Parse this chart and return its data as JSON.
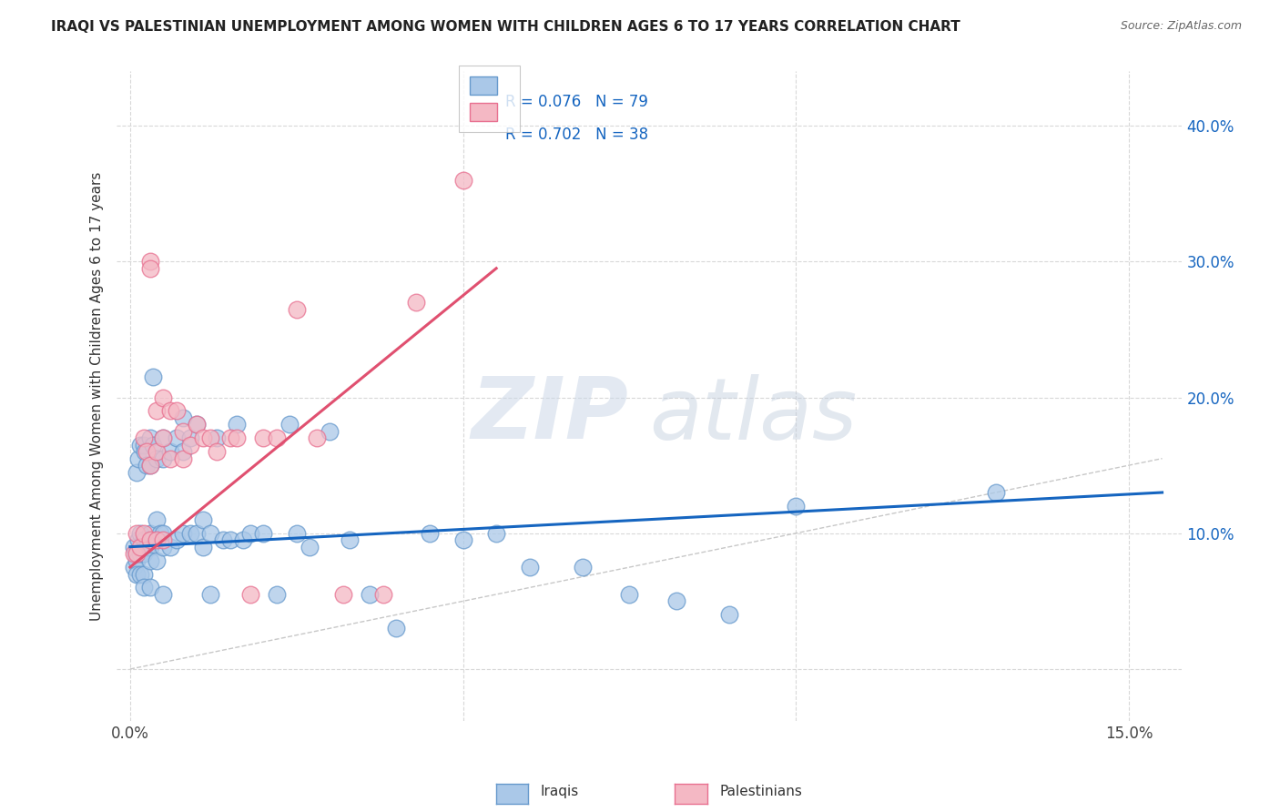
{
  "title": "IRAQI VS PALESTINIAN UNEMPLOYMENT AMONG WOMEN WITH CHILDREN AGES 6 TO 17 YEARS CORRELATION CHART",
  "source": "Source: ZipAtlas.com",
  "ylabel": "Unemployment Among Women with Children Ages 6 to 17 years",
  "ylabel_ticks": [
    0.0,
    0.1,
    0.2,
    0.3,
    0.4
  ],
  "ylabel_labels": [
    "",
    "10.0%",
    "20.0%",
    "30.0%",
    "40.0%"
  ],
  "xlim": [
    -0.002,
    0.158
  ],
  "ylim": [
    -0.038,
    0.44
  ],
  "legend_r_color": "#1565c0",
  "legend_n_color": "#1565c0",
  "watermark_zip": "ZIP",
  "watermark_atlas": "atlas",
  "iraqis_color": "#aac8e8",
  "palestinians_color": "#f4b8c4",
  "iraqis_edge_color": "#6699cc",
  "palestinians_edge_color": "#e87090",
  "iraqis_line_color": "#1565c0",
  "palestinians_line_color": "#e05070",
  "diagonal_color": "#c8c8c8",
  "grid_color": "#d8d8d8",
  "iraqis_x": [
    0.0005,
    0.0005,
    0.0008,
    0.001,
    0.001,
    0.001,
    0.0012,
    0.0012,
    0.0015,
    0.0015,
    0.0015,
    0.0015,
    0.002,
    0.002,
    0.002,
    0.002,
    0.002,
    0.0022,
    0.0022,
    0.0025,
    0.0025,
    0.003,
    0.003,
    0.003,
    0.003,
    0.003,
    0.003,
    0.0035,
    0.0035,
    0.004,
    0.004,
    0.004,
    0.004,
    0.0045,
    0.005,
    0.005,
    0.005,
    0.005,
    0.005,
    0.006,
    0.006,
    0.007,
    0.007,
    0.008,
    0.008,
    0.008,
    0.009,
    0.009,
    0.01,
    0.01,
    0.011,
    0.011,
    0.012,
    0.012,
    0.013,
    0.014,
    0.015,
    0.016,
    0.017,
    0.018,
    0.02,
    0.022,
    0.024,
    0.025,
    0.027,
    0.03,
    0.033,
    0.036,
    0.04,
    0.045,
    0.05,
    0.055,
    0.06,
    0.068,
    0.075,
    0.082,
    0.09,
    0.1,
    0.13
  ],
  "iraqis_y": [
    0.09,
    0.075,
    0.085,
    0.145,
    0.08,
    0.07,
    0.155,
    0.095,
    0.165,
    0.1,
    0.085,
    0.07,
    0.165,
    0.095,
    0.085,
    0.07,
    0.06,
    0.16,
    0.095,
    0.15,
    0.09,
    0.17,
    0.15,
    0.1,
    0.09,
    0.08,
    0.06,
    0.215,
    0.165,
    0.155,
    0.11,
    0.095,
    0.08,
    0.1,
    0.17,
    0.155,
    0.1,
    0.09,
    0.055,
    0.16,
    0.09,
    0.17,
    0.095,
    0.185,
    0.16,
    0.1,
    0.17,
    0.1,
    0.18,
    0.1,
    0.11,
    0.09,
    0.1,
    0.055,
    0.17,
    0.095,
    0.095,
    0.18,
    0.095,
    0.1,
    0.1,
    0.055,
    0.18,
    0.1,
    0.09,
    0.175,
    0.095,
    0.055,
    0.03,
    0.1,
    0.095,
    0.1,
    0.075,
    0.075,
    0.055,
    0.05,
    0.04,
    0.12,
    0.13
  ],
  "palestinians_x": [
    0.0005,
    0.001,
    0.001,
    0.0015,
    0.002,
    0.002,
    0.0025,
    0.003,
    0.003,
    0.003,
    0.003,
    0.004,
    0.004,
    0.004,
    0.005,
    0.005,
    0.005,
    0.006,
    0.006,
    0.007,
    0.008,
    0.008,
    0.009,
    0.01,
    0.011,
    0.012,
    0.013,
    0.015,
    0.016,
    0.018,
    0.02,
    0.022,
    0.025,
    0.028,
    0.032,
    0.038,
    0.043,
    0.05
  ],
  "palestinians_y": [
    0.085,
    0.1,
    0.085,
    0.09,
    0.17,
    0.1,
    0.16,
    0.3,
    0.295,
    0.15,
    0.095,
    0.19,
    0.16,
    0.095,
    0.2,
    0.17,
    0.095,
    0.19,
    0.155,
    0.19,
    0.175,
    0.155,
    0.165,
    0.18,
    0.17,
    0.17,
    0.16,
    0.17,
    0.17,
    0.055,
    0.17,
    0.17,
    0.265,
    0.17,
    0.055,
    0.055,
    0.27,
    0.36
  ],
  "iraqis_line": {
    "x0": 0.0,
    "x1": 0.155,
    "y0": 0.09,
    "y1": 0.13
  },
  "palestinians_line": {
    "x0": 0.0,
    "x1": 0.055,
    "y0": 0.075,
    "y1": 0.295
  },
  "diagonal_line": {
    "x0": 0.0,
    "x1": 0.155,
    "y0": 0.0,
    "y1": 0.155
  }
}
